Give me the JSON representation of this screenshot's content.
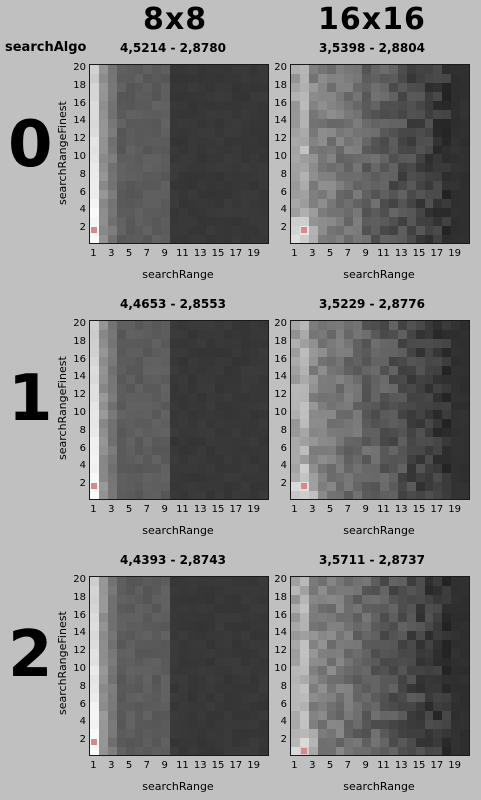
{
  "header": {
    "col_labels": [
      "8x8",
      "16x16"
    ],
    "row_axis_label": "searchAlgo",
    "row_labels": [
      "0",
      "1",
      "2"
    ]
  },
  "axis": {
    "xlabel": "searchRange",
    "ylabel": "searchRangeFinest",
    "xticks": [
      "1",
      "3",
      "5",
      "7",
      "9",
      "11",
      "13",
      "15",
      "17",
      "19"
    ],
    "yticks": [
      "20",
      "18",
      "16",
      "14",
      "12",
      "10",
      "8",
      "6",
      "4",
      "2"
    ]
  },
  "colors": {
    "background": "#c0c0c0",
    "marker": "#d88a8a"
  },
  "chart_data": {
    "type": "heatmap",
    "grid": {
      "xmin": 1,
      "xmax": 20,
      "ymin": 1,
      "ymax": 20
    },
    "panels": [
      {
        "id": "p00",
        "row": 0,
        "col": 0,
        "range": "4,5214 - 2,8780",
        "best": [
          1,
          2
        ],
        "style": "8x8"
      },
      {
        "id": "p01",
        "row": 0,
        "col": 1,
        "range": "3,5398 - 2,8804",
        "best": [
          2,
          2
        ],
        "style": "16x16"
      },
      {
        "id": "p10",
        "row": 1,
        "col": 0,
        "range": "4,4653 - 2,8553",
        "best": [
          1,
          2
        ],
        "style": "8x8"
      },
      {
        "id": "p11",
        "row": 1,
        "col": 1,
        "range": "3,5229 - 2,8776",
        "best": [
          2,
          2
        ],
        "style": "16x16"
      },
      {
        "id": "p20",
        "row": 2,
        "col": 0,
        "range": "4,4393 - 2,8743",
        "best": [
          1,
          2
        ],
        "style": "8x8"
      },
      {
        "id": "p21",
        "row": 2,
        "col": 1,
        "range": "3,5711 - 2,8737",
        "best": [
          2,
          1
        ],
        "style": "16x16"
      }
    ]
  }
}
